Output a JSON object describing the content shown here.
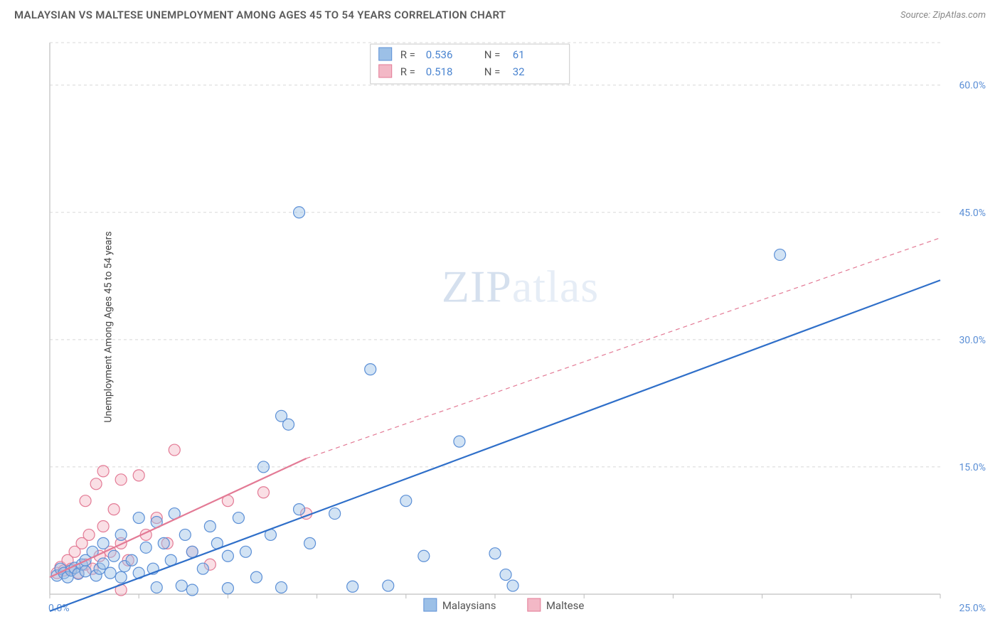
{
  "header": {
    "title": "MALAYSIAN VS MALTESE UNEMPLOYMENT AMONG AGES 45 TO 54 YEARS CORRELATION CHART",
    "source_prefix": "Source: ",
    "source": "ZipAtlas.com"
  },
  "chart": {
    "type": "scatter",
    "ylabel": "Unemployment Among Ages 45 to 54 years",
    "xlim": [
      0,
      25
    ],
    "ylim": [
      0,
      65
    ],
    "xtick_labels": [
      "0.0%",
      "25.0%"
    ],
    "ytick_labels": [
      "15.0%",
      "30.0%",
      "45.0%",
      "60.0%"
    ],
    "ytick_vals": [
      15,
      30,
      45,
      60
    ],
    "x_minor_step": 2.5,
    "background_color": "#ffffff",
    "grid_color": "#d8d8d8",
    "axis_color": "#cccccc",
    "watermark": "ZIPatlas",
    "series": {
      "malaysians": {
        "label": "Malaysians",
        "fill": "#9cc0e7",
        "stroke": "#5b8fd6",
        "trend_color": "#2f6fc9",
        "trend": {
          "x1": 0,
          "y1": -2,
          "x2": 25,
          "y2": 37
        },
        "points": [
          [
            0.2,
            2.2
          ],
          [
            0.3,
            3.0
          ],
          [
            0.4,
            2.5
          ],
          [
            0.5,
            2.0
          ],
          [
            0.6,
            2.8
          ],
          [
            0.7,
            3.1
          ],
          [
            0.8,
            2.4
          ],
          [
            0.9,
            3.5
          ],
          [
            1.0,
            2.7
          ],
          [
            1.0,
            4.0
          ],
          [
            1.2,
            5.0
          ],
          [
            1.3,
            2.2
          ],
          [
            1.4,
            3.0
          ],
          [
            1.5,
            3.6
          ],
          [
            1.5,
            6.0
          ],
          [
            1.7,
            2.5
          ],
          [
            1.8,
            4.5
          ],
          [
            2.0,
            2.0
          ],
          [
            2.0,
            7.0
          ],
          [
            2.1,
            3.3
          ],
          [
            2.3,
            4.0
          ],
          [
            2.5,
            9.0
          ],
          [
            2.5,
            2.5
          ],
          [
            2.7,
            5.5
          ],
          [
            2.9,
            3.0
          ],
          [
            3.0,
            8.5
          ],
          [
            3.0,
            0.8
          ],
          [
            3.2,
            6.0
          ],
          [
            3.4,
            4.0
          ],
          [
            3.5,
            9.5
          ],
          [
            3.7,
            1.0
          ],
          [
            3.8,
            7.0
          ],
          [
            4.0,
            5.0
          ],
          [
            4.0,
            0.5
          ],
          [
            4.3,
            3.0
          ],
          [
            4.5,
            8.0
          ],
          [
            4.7,
            6.0
          ],
          [
            5.0,
            4.5
          ],
          [
            5.0,
            0.7
          ],
          [
            5.3,
            9.0
          ],
          [
            5.5,
            5.0
          ],
          [
            5.8,
            2.0
          ],
          [
            6.0,
            15.0
          ],
          [
            6.2,
            7.0
          ],
          [
            6.5,
            0.8
          ],
          [
            6.7,
            20.0
          ],
          [
            6.5,
            21.0
          ],
          [
            7.0,
            10.0
          ],
          [
            7.3,
            6.0
          ],
          [
            8.0,
            9.5
          ],
          [
            8.5,
            0.9
          ],
          [
            9.0,
            26.5
          ],
          [
            9.5,
            1.0
          ],
          [
            10.0,
            11.0
          ],
          [
            10.5,
            4.5
          ],
          [
            11.5,
            18.0
          ],
          [
            12.5,
            4.8
          ],
          [
            12.8,
            2.3
          ],
          [
            13.0,
            1.0
          ],
          [
            20.5,
            40.0
          ],
          [
            7.0,
            45.0
          ]
        ]
      },
      "maltese": {
        "label": "Maltese",
        "fill": "#f3b8c6",
        "stroke": "#e37a95",
        "trend_color": "#e37a95",
        "trend_solid": {
          "x1": 0,
          "y1": 2.0,
          "x2": 7.2,
          "y2": 16.0
        },
        "trend_dash": {
          "x1": 7.2,
          "y1": 16.0,
          "x2": 25,
          "y2": 42.0
        },
        "points": [
          [
            0.2,
            2.5
          ],
          [
            0.3,
            3.2
          ],
          [
            0.4,
            2.8
          ],
          [
            0.5,
            4.0
          ],
          [
            0.6,
            3.0
          ],
          [
            0.7,
            5.0
          ],
          [
            0.8,
            2.5
          ],
          [
            0.9,
            6.0
          ],
          [
            1.0,
            3.5
          ],
          [
            1.0,
            11.0
          ],
          [
            1.1,
            7.0
          ],
          [
            1.2,
            3.0
          ],
          [
            1.3,
            13.0
          ],
          [
            1.4,
            4.5
          ],
          [
            1.5,
            14.5
          ],
          [
            1.5,
            8.0
          ],
          [
            1.7,
            5.0
          ],
          [
            1.8,
            10.0
          ],
          [
            2.0,
            6.0
          ],
          [
            2.0,
            13.5
          ],
          [
            2.2,
            4.0
          ],
          [
            2.5,
            14.0
          ],
          [
            2.7,
            7.0
          ],
          [
            2.0,
            0.5
          ],
          [
            3.0,
            9.0
          ],
          [
            3.3,
            6.0
          ],
          [
            3.5,
            17.0
          ],
          [
            4.0,
            5.0
          ],
          [
            4.5,
            3.5
          ],
          [
            5.0,
            11.0
          ],
          [
            6.0,
            12.0
          ],
          [
            7.2,
            9.5
          ]
        ]
      }
    },
    "stats": [
      {
        "swatch_fill": "#9cc0e7",
        "swatch_stroke": "#5b8fd6",
        "r_label": "R =",
        "r": "0.536",
        "n_label": "N =",
        "n": "61"
      },
      {
        "swatch_fill": "#f3b8c6",
        "swatch_stroke": "#e37a95",
        "r_label": "R =",
        "r": "0.518",
        "n_label": "N =",
        "n": "32"
      }
    ],
    "legend": [
      {
        "swatch_fill": "#9cc0e7",
        "swatch_stroke": "#5b8fd6",
        "label": "Malaysians"
      },
      {
        "swatch_fill": "#f3b8c6",
        "swatch_stroke": "#e37a95",
        "label": "Maltese"
      }
    ]
  }
}
